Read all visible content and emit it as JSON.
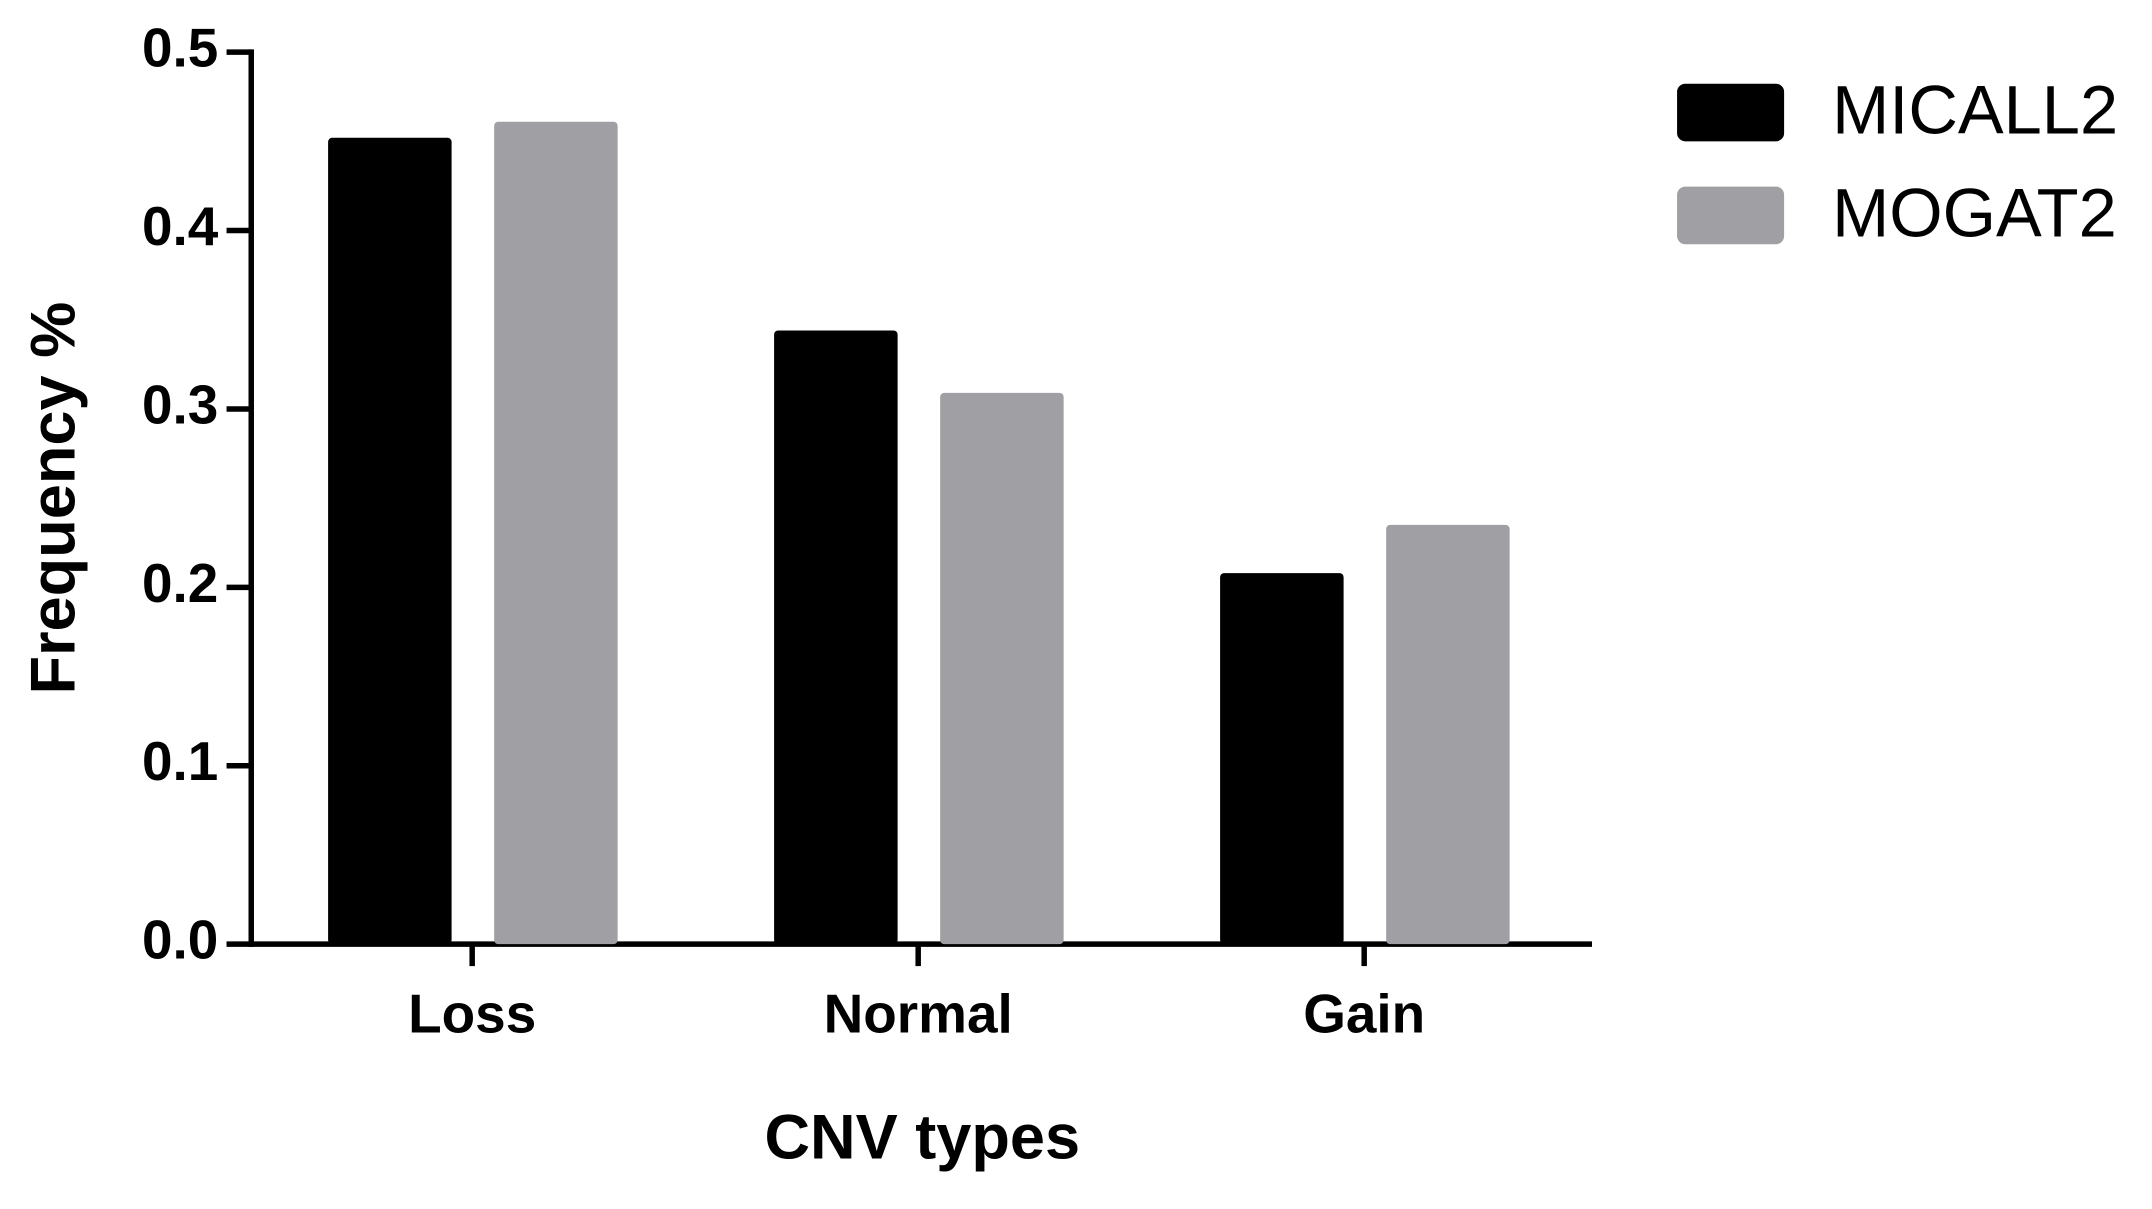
{
  "chart_data": {
    "type": "bar",
    "x_label": "CNV types",
    "y_label": "Frequency %",
    "categories": [
      "Loss",
      "Normal",
      "Gain"
    ],
    "series": [
      {
        "name": "MICALL2",
        "color": "#000000",
        "values": [
          0.452,
          0.344,
          0.208
        ]
      },
      {
        "name": "MOGAT2",
        "color": "#a0a0a4",
        "values": [
          0.461,
          0.309,
          0.235
        ]
      }
    ],
    "ylim": [
      0,
      0.5
    ],
    "yticks": [
      {
        "value": 0,
        "label": "0.0"
      },
      0.1,
      0.2,
      0.3,
      0.4,
      0.5
    ],
    "legend": "right"
  }
}
